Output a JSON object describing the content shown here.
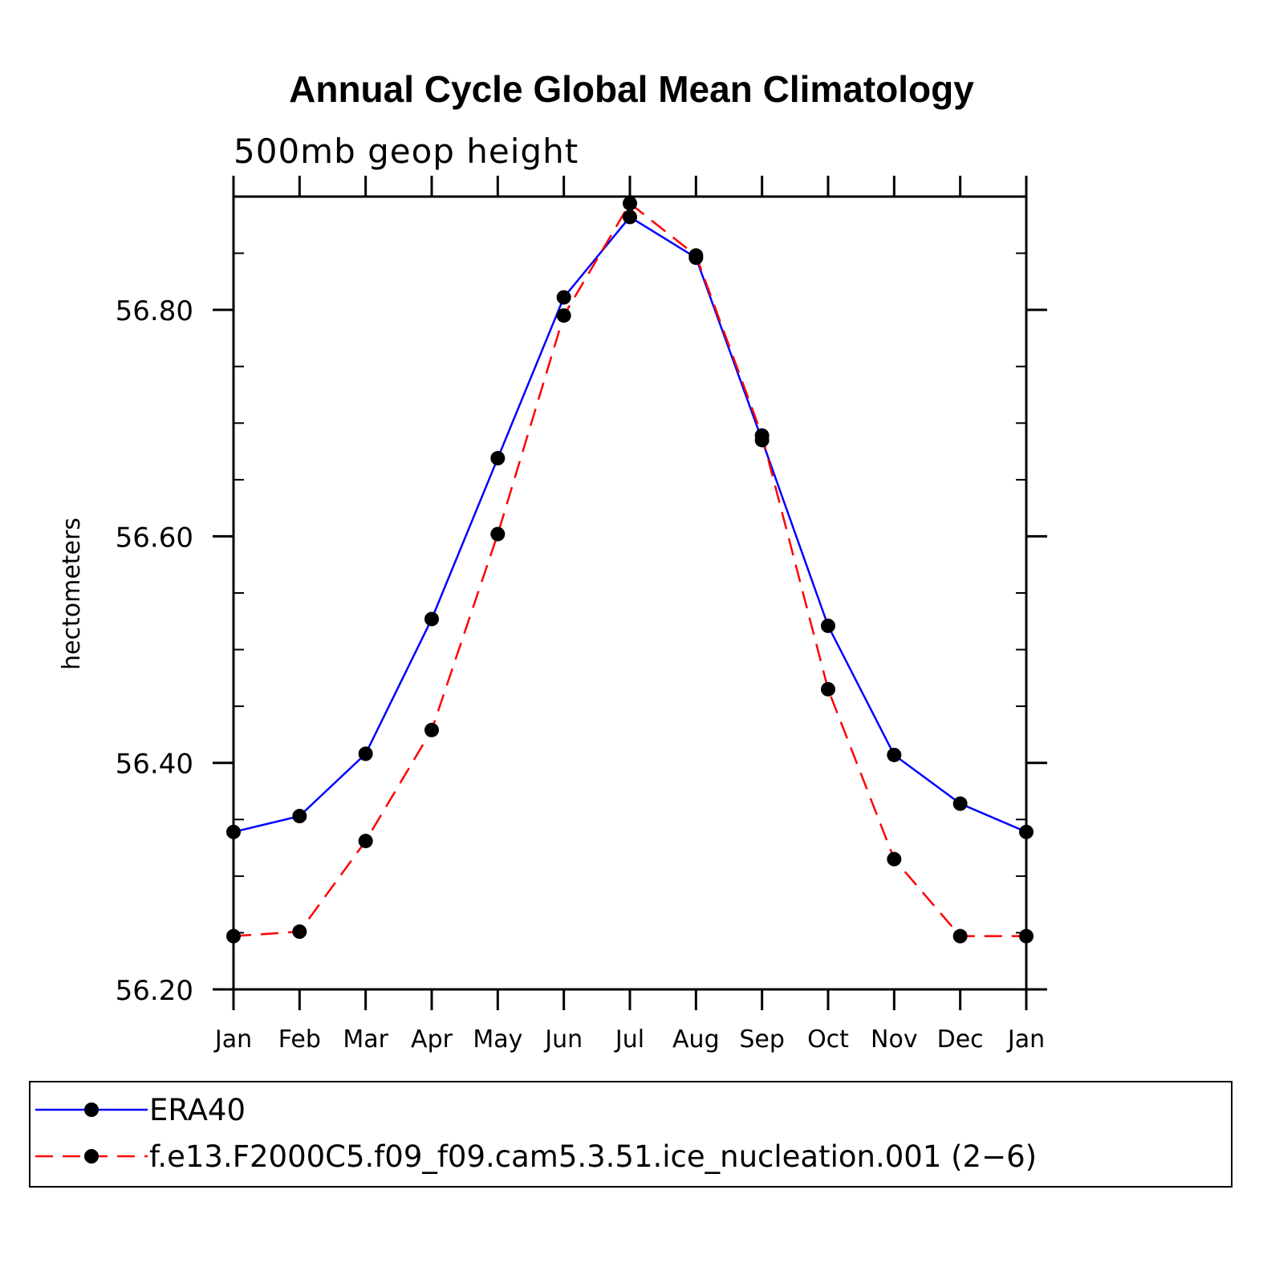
{
  "chart_data": {
    "type": "line",
    "title": "Annual Cycle Global Mean Climatology",
    "subtitle": "500mb geop height",
    "xlabel": "",
    "ylabel": "hectometers",
    "categories": [
      "Jan",
      "Feb",
      "Mar",
      "Apr",
      "May",
      "Jun",
      "Jul",
      "Aug",
      "Sep",
      "Oct",
      "Nov",
      "Dec",
      "Jan"
    ],
    "ylim": [
      56.2,
      56.9
    ],
    "yticks": [
      "56.20",
      "56.40",
      "56.60",
      "56.80"
    ],
    "ytick_values": [
      56.2,
      56.4,
      56.6,
      56.8
    ],
    "y_minor_step": 0.05,
    "grid": false,
    "legend_position": "bottom",
    "series": [
      {
        "name": "ERA40",
        "color": "#0000ff",
        "dash": "solid",
        "marker": "circle",
        "values": [
          56.339,
          56.353,
          56.408,
          56.527,
          56.669,
          56.811,
          56.882,
          56.846,
          56.685,
          56.521,
          56.407,
          56.364,
          56.339
        ]
      },
      {
        "name": "f.e13.F2000C5.f09_f09.cam5.3.51.ice_nucleation.001 (2−6)",
        "color": "#ff0000",
        "dash": "dashed",
        "marker": "circle",
        "values": [
          56.247,
          56.251,
          56.331,
          56.429,
          56.602,
          56.795,
          56.894,
          56.848,
          56.689,
          56.465,
          56.315,
          56.247,
          56.247
        ]
      }
    ]
  }
}
